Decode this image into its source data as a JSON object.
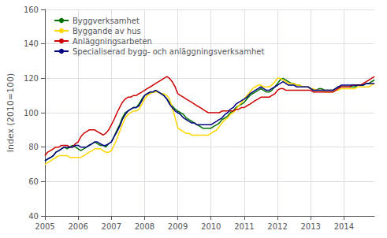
{
  "chart_data": {
    "type": "line",
    "ylabel": "Index (2010=100)",
    "xlim": [
      2005.0,
      2014.917
    ],
    "xticks": [
      2005,
      2006,
      2007,
      2008,
      2009,
      2010,
      2011,
      2012,
      2013,
      2014
    ],
    "ylim": [
      40,
      160
    ],
    "yticks": [
      40,
      60,
      80,
      100,
      120,
      140,
      160
    ],
    "grid": true,
    "legend": "upper left",
    "x": [
      2005.0,
      2005.08,
      2005.17,
      2005.25,
      2005.33,
      2005.42,
      2005.5,
      2005.58,
      2005.67,
      2005.75,
      2005.83,
      2005.92,
      2006.0,
      2006.08,
      2006.17,
      2006.25,
      2006.33,
      2006.42,
      2006.5,
      2006.58,
      2006.67,
      2006.75,
      2006.83,
      2006.92,
      2007.0,
      2007.08,
      2007.17,
      2007.25,
      2007.33,
      2007.42,
      2007.5,
      2007.58,
      2007.67,
      2007.75,
      2007.83,
      2007.92,
      2008.0,
      2008.08,
      2008.17,
      2008.25,
      2008.33,
      2008.42,
      2008.5,
      2008.58,
      2008.67,
      2008.75,
      2008.83,
      2008.92,
      2009.0,
      2009.08,
      2009.17,
      2009.25,
      2009.33,
      2009.42,
      2009.5,
      2009.58,
      2009.67,
      2009.75,
      2009.83,
      2009.92,
      2010.0,
      2010.08,
      2010.17,
      2010.25,
      2010.33,
      2010.42,
      2010.5,
      2010.58,
      2010.67,
      2010.75,
      2010.83,
      2010.92,
      2011.0,
      2011.08,
      2011.17,
      2011.25,
      2011.33,
      2011.42,
      2011.5,
      2011.58,
      2011.67,
      2011.75,
      2011.83,
      2011.92,
      2012.0,
      2012.08,
      2012.17,
      2012.25,
      2012.33,
      2012.42,
      2012.5,
      2012.58,
      2012.67,
      2012.75,
      2012.83,
      2012.92,
      2013.0,
      2013.08,
      2013.17,
      2013.25,
      2013.33,
      2013.42,
      2013.5,
      2013.58,
      2013.67,
      2013.75,
      2013.83,
      2013.92,
      2014.0,
      2014.08,
      2014.17,
      2014.25,
      2014.33,
      2014.42,
      2014.5,
      2014.58,
      2014.67,
      2014.75,
      2014.83,
      2014.92
    ],
    "series": [
      {
        "name": "Byggverksamhet",
        "color": "#007000",
        "values": [
          72,
          73,
          74,
          75,
          77,
          78,
          79,
          80,
          79,
          80,
          81,
          80,
          79,
          78,
          79,
          80,
          81,
          82,
          83,
          82,
          81,
          81,
          80,
          82,
          83,
          86,
          90,
          93,
          97,
          100,
          101,
          102,
          103,
          103,
          105,
          108,
          110,
          111,
          112,
          112,
          113,
          112,
          111,
          110,
          108,
          106,
          104,
          102,
          101,
          100,
          99,
          97,
          96,
          95,
          94,
          93,
          92,
          91,
          91,
          91,
          91,
          92,
          93,
          94,
          96,
          97,
          98,
          100,
          101,
          103,
          104,
          105,
          106,
          108,
          110,
          111,
          112,
          113,
          114,
          113,
          112,
          112,
          113,
          115,
          117,
          119,
          120,
          119,
          118,
          117,
          117,
          116,
          116,
          115,
          115,
          115,
          114,
          113,
          113,
          114,
          114,
          113,
          113,
          113,
          113,
          114,
          115,
          115,
          115,
          115,
          115,
          115,
          115,
          116,
          116,
          116,
          117,
          117,
          118,
          119
        ]
      },
      {
        "name": "Byggande av hus",
        "color": "#FFD700",
        "values": [
          70,
          71,
          72,
          73,
          74,
          75,
          75,
          75,
          75,
          74,
          74,
          74,
          74,
          74,
          75,
          76,
          77,
          78,
          79,
          79,
          79,
          78,
          77,
          77,
          78,
          81,
          85,
          89,
          93,
          97,
          99,
          100,
          101,
          101,
          102,
          105,
          108,
          110,
          111,
          112,
          112,
          112,
          111,
          111,
          110,
          108,
          103,
          97,
          91,
          90,
          89,
          88,
          88,
          87,
          87,
          87,
          87,
          87,
          87,
          87,
          88,
          89,
          90,
          92,
          94,
          96,
          97,
          99,
          100,
          102,
          104,
          106,
          108,
          110,
          112,
          114,
          115,
          116,
          116,
          115,
          115,
          115,
          116,
          118,
          120,
          120,
          119,
          118,
          117,
          117,
          117,
          116,
          116,
          115,
          115,
          115,
          114,
          114,
          113,
          113,
          113,
          112,
          112,
          112,
          112,
          113,
          113,
          114,
          114,
          114,
          114,
          114,
          114,
          115,
          115,
          115,
          115,
          115,
          116,
          117
        ]
      },
      {
        "name": "Anläggningsarbeten",
        "color": "#CC0000",
        "values": [
          75,
          77,
          78,
          79,
          80,
          80,
          81,
          81,
          81,
          80,
          80,
          82,
          83,
          86,
          88,
          89,
          90,
          90,
          90,
          89,
          88,
          87,
          88,
          90,
          93,
          96,
          100,
          103,
          106,
          108,
          109,
          109,
          110,
          110,
          111,
          112,
          113,
          114,
          115,
          116,
          117,
          118,
          119,
          120,
          121,
          120,
          118,
          115,
          111,
          110,
          109,
          108,
          107,
          106,
          105,
          104,
          103,
          102,
          101,
          100,
          100,
          100,
          100,
          100,
          101,
          101,
          101,
          101,
          101,
          102,
          102,
          103,
          103,
          104,
          105,
          106,
          107,
          108,
          109,
          109,
          109,
          109,
          110,
          111,
          113,
          114,
          114,
          113,
          113,
          113,
          113,
          113,
          113,
          113,
          113,
          113,
          113,
          112,
          112,
          112,
          112,
          112,
          112,
          112,
          112,
          113,
          114,
          115,
          115,
          115,
          115,
          116,
          116,
          116,
          116,
          117,
          118,
          119,
          120,
          121
        ]
      },
      {
        "name": "Specialiserad bygg- och anläggningsverksamhet",
        "color": "#000080",
        "values": [
          72,
          73,
          74,
          75,
          77,
          78,
          79,
          80,
          80,
          80,
          80,
          81,
          81,
          80,
          80,
          80,
          81,
          82,
          83,
          83,
          82,
          81,
          81,
          82,
          83,
          86,
          89,
          92,
          96,
          99,
          101,
          102,
          103,
          103,
          104,
          107,
          110,
          111,
          112,
          112,
          113,
          112,
          111,
          110,
          108,
          105,
          103,
          101,
          100,
          99,
          97,
          96,
          95,
          94,
          94,
          93,
          93,
          93,
          93,
          93,
          93,
          94,
          95,
          96,
          97,
          99,
          100,
          102,
          103,
          105,
          106,
          107,
          108,
          109,
          111,
          112,
          113,
          114,
          115,
          114,
          113,
          113,
          114,
          115,
          116,
          117,
          118,
          117,
          116,
          116,
          116,
          115,
          115,
          115,
          115,
          115,
          114,
          113,
          113,
          113,
          113,
          113,
          113,
          113,
          113,
          114,
          115,
          116,
          116,
          116,
          116,
          116,
          116,
          116,
          116,
          116,
          117,
          117,
          117,
          117
        ]
      }
    ]
  }
}
